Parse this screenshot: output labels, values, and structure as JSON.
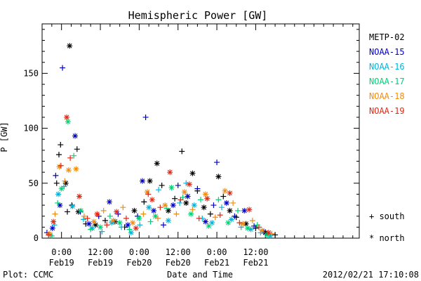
{
  "chart_data": {
    "type": "scatter",
    "title": "Hemispheric Power [GW]",
    "xlabel": "Date and Time",
    "ylabel": "P [GW]",
    "ylim": [
      0,
      195
    ],
    "yticks": [
      0,
      50,
      100,
      150
    ],
    "xlim_hours": [
      -6,
      92
    ],
    "xticks": [
      {
        "hour": 0,
        "time": "0:00",
        "date": "Feb19"
      },
      {
        "hour": 12,
        "time": "12:00",
        "date": "Feb19"
      },
      {
        "hour": 24,
        "time": "0:00",
        "date": "Feb20"
      },
      {
        "hour": 36,
        "time": "12:00",
        "date": "Feb20"
      },
      {
        "hour": 48,
        "time": "0:00",
        "date": "Feb21"
      },
      {
        "hour": 60,
        "time": "12:00",
        "date": "Feb21"
      }
    ],
    "x_minor_step_hours": 3,
    "legend_position": "right",
    "marker_legend": [
      {
        "symbol": "+",
        "label": "south"
      },
      {
        "symbol": "*",
        "label": "north"
      }
    ],
    "series": [
      {
        "name": "METP-02",
        "color": "#000000",
        "points": [
          {
            "x": -1.5,
            "y": 50,
            "m": "+"
          },
          {
            "x": -0.8,
            "y": 76,
            "m": "+"
          },
          {
            "x": -0.3,
            "y": 85,
            "m": "+"
          },
          {
            "x": 1.3,
            "y": 50,
            "m": "*"
          },
          {
            "x": 1.8,
            "y": 24,
            "m": "+"
          },
          {
            "x": 2.5,
            "y": 175,
            "m": "*"
          },
          {
            "x": 3.2,
            "y": 30,
            "m": "+"
          },
          {
            "x": 4.8,
            "y": 81,
            "m": "+"
          },
          {
            "x": 5.2,
            "y": 24,
            "m": "*"
          },
          {
            "x": 7.5,
            "y": 13,
            "m": "+"
          },
          {
            "x": 10.5,
            "y": 12,
            "m": "*"
          },
          {
            "x": 13.5,
            "y": 16,
            "m": "+"
          },
          {
            "x": 16.5,
            "y": 15,
            "m": "*"
          },
          {
            "x": 19.5,
            "y": 10,
            "m": "+"
          },
          {
            "x": 22.5,
            "y": 25,
            "m": "*"
          },
          {
            "x": 25.5,
            "y": 33,
            "m": "+"
          },
          {
            "x": 27.3,
            "y": 52,
            "m": "*"
          },
          {
            "x": 29.5,
            "y": 68,
            "m": "*"
          },
          {
            "x": 31,
            "y": 48,
            "m": "+"
          },
          {
            "x": 33,
            "y": 25,
            "m": "*"
          },
          {
            "x": 35,
            "y": 36,
            "m": "+"
          },
          {
            "x": 37.2,
            "y": 79,
            "m": "+"
          },
          {
            "x": 38.5,
            "y": 32,
            "m": "*"
          },
          {
            "x": 40.5,
            "y": 59,
            "m": "*"
          },
          {
            "x": 42,
            "y": 43,
            "m": "+"
          },
          {
            "x": 44,
            "y": 28,
            "m": "*"
          },
          {
            "x": 46,
            "y": 22,
            "m": "+"
          },
          {
            "x": 48.5,
            "y": 56,
            "m": "*"
          },
          {
            "x": 50,
            "y": 38,
            "m": "+"
          },
          {
            "x": 52,
            "y": 25,
            "m": "*"
          },
          {
            "x": 54,
            "y": 19,
            "m": "+"
          },
          {
            "x": 57,
            "y": 13,
            "m": "*"
          },
          {
            "x": 60,
            "y": 9,
            "m": "+"
          },
          {
            "x": 63,
            "y": 5,
            "m": "*"
          },
          {
            "x": 66,
            "y": 3,
            "m": "+"
          }
        ]
      },
      {
        "name": "NOAA-15",
        "color": "#0000c8",
        "points": [
          {
            "x": -4.5,
            "y": 5,
            "m": "+"
          },
          {
            "x": -2.8,
            "y": 9,
            "m": "*"
          },
          {
            "x": -1.8,
            "y": 57,
            "m": "+"
          },
          {
            "x": -0.5,
            "y": 30,
            "m": "*"
          },
          {
            "x": 0.3,
            "y": 155,
            "m": "+"
          },
          {
            "x": 4.2,
            "y": 93,
            "m": "*"
          },
          {
            "x": 5.8,
            "y": 24,
            "m": "+"
          },
          {
            "x": 8.5,
            "y": 13,
            "m": "*"
          },
          {
            "x": 11.5,
            "y": 20,
            "m": "+"
          },
          {
            "x": 14.8,
            "y": 33,
            "m": "*"
          },
          {
            "x": 17.5,
            "y": 22,
            "m": "+"
          },
          {
            "x": 20.5,
            "y": 12,
            "m": "*"
          },
          {
            "x": 23.5,
            "y": 20,
            "m": "+"
          },
          {
            "x": 25,
            "y": 52,
            "m": "*"
          },
          {
            "x": 26,
            "y": 110,
            "m": "+"
          },
          {
            "x": 28.5,
            "y": 25,
            "m": "*"
          },
          {
            "x": 31.5,
            "y": 12,
            "m": "+"
          },
          {
            "x": 34.5,
            "y": 30,
            "m": "*"
          },
          {
            "x": 36,
            "y": 48,
            "m": "+"
          },
          {
            "x": 39,
            "y": 38,
            "m": "*"
          },
          {
            "x": 42,
            "y": 45,
            "m": "+"
          },
          {
            "x": 44.5,
            "y": 15,
            "m": "*"
          },
          {
            "x": 47,
            "y": 30,
            "m": "+"
          },
          {
            "x": 48,
            "y": 69,
            "m": "+"
          },
          {
            "x": 51,
            "y": 32,
            "m": "*"
          },
          {
            "x": 53.5,
            "y": 20,
            "m": "+"
          },
          {
            "x": 56.5,
            "y": 25,
            "m": "*"
          },
          {
            "x": 59.5,
            "y": 11,
            "m": "+"
          },
          {
            "x": 62.5,
            "y": 6,
            "m": "*"
          }
        ]
      },
      {
        "name": "NOAA-16",
        "color": "#00b4dc",
        "points": [
          {
            "x": -3.5,
            "y": 3,
            "m": "*"
          },
          {
            "x": -2.2,
            "y": 12,
            "m": "+"
          },
          {
            "x": -1,
            "y": 40,
            "m": "*"
          },
          {
            "x": 0.8,
            "y": 47,
            "m": "+"
          },
          {
            "x": 3.4,
            "y": 29,
            "m": "*"
          },
          {
            "x": 6.8,
            "y": 17,
            "m": "+"
          },
          {
            "x": 9.5,
            "y": 9,
            "m": "*"
          },
          {
            "x": 12.5,
            "y": 6,
            "m": "+"
          },
          {
            "x": 15.5,
            "y": 14,
            "m": "*"
          },
          {
            "x": 18.5,
            "y": 10,
            "m": "+"
          },
          {
            "x": 21.5,
            "y": 5,
            "m": "*"
          },
          {
            "x": 24.2,
            "y": 12,
            "m": "+"
          },
          {
            "x": 27,
            "y": 28,
            "m": "*"
          },
          {
            "x": 30,
            "y": 44,
            "m": "+"
          },
          {
            "x": 33,
            "y": 16,
            "m": "*"
          },
          {
            "x": 36.5,
            "y": 32,
            "m": "+"
          },
          {
            "x": 38.5,
            "y": 50,
            "m": "+"
          },
          {
            "x": 41,
            "y": 30,
            "m": "*"
          },
          {
            "x": 43.5,
            "y": 18,
            "m": "+"
          },
          {
            "x": 46.5,
            "y": 14,
            "m": "*"
          },
          {
            "x": 49.5,
            "y": 28,
            "m": "+"
          },
          {
            "x": 52.5,
            "y": 17,
            "m": "*"
          },
          {
            "x": 55.5,
            "y": 10,
            "m": "+"
          },
          {
            "x": 58.5,
            "y": 8,
            "m": "*"
          },
          {
            "x": 61.5,
            "y": 5,
            "m": "+"
          },
          {
            "x": 64.5,
            "y": 2,
            "m": "*"
          }
        ]
      },
      {
        "name": "NOAA-17",
        "color": "#00d278",
        "points": [
          {
            "x": -3,
            "y": 2,
            "m": "+"
          },
          {
            "x": -1.2,
            "y": 32,
            "m": "+"
          },
          {
            "x": 0,
            "y": 45,
            "m": "*"
          },
          {
            "x": 2,
            "y": 106,
            "m": "*"
          },
          {
            "x": 3.8,
            "y": 75,
            "m": "+"
          },
          {
            "x": 6,
            "y": 25,
            "m": "*"
          },
          {
            "x": 9,
            "y": 8,
            "m": "+"
          },
          {
            "x": 12,
            "y": 10,
            "m": "*"
          },
          {
            "x": 15,
            "y": 20,
            "m": "+"
          },
          {
            "x": 18,
            "y": 14,
            "m": "*"
          },
          {
            "x": 21,
            "y": 8,
            "m": "+"
          },
          {
            "x": 24,
            "y": 18,
            "m": "*"
          },
          {
            "x": 27.5,
            "y": 15,
            "m": "+"
          },
          {
            "x": 29,
            "y": 20,
            "m": "*"
          },
          {
            "x": 32.5,
            "y": 27,
            "m": "+"
          },
          {
            "x": 34,
            "y": 46,
            "m": "*"
          },
          {
            "x": 37.5,
            "y": 37,
            "m": "+"
          },
          {
            "x": 40,
            "y": 22,
            "m": "*"
          },
          {
            "x": 43,
            "y": 35,
            "m": "+"
          },
          {
            "x": 45.5,
            "y": 11,
            "m": "*"
          },
          {
            "x": 48.5,
            "y": 35,
            "m": "+"
          },
          {
            "x": 51.5,
            "y": 14,
            "m": "*"
          },
          {
            "x": 54.5,
            "y": 25,
            "m": "+"
          },
          {
            "x": 57.5,
            "y": 9,
            "m": "*"
          },
          {
            "x": 60.5,
            "y": 12,
            "m": "+"
          },
          {
            "x": 63.5,
            "y": 3,
            "m": "*"
          }
        ]
      },
      {
        "name": "NOAA-18",
        "color": "#f08c14",
        "points": [
          {
            "x": -3.8,
            "y": 4,
            "m": "*"
          },
          {
            "x": -2,
            "y": 22,
            "m": "+"
          },
          {
            "x": -0.7,
            "y": 65,
            "m": "*"
          },
          {
            "x": 1,
            "y": 52,
            "m": "+"
          },
          {
            "x": 2.2,
            "y": 62,
            "m": "*"
          },
          {
            "x": 4.5,
            "y": 63,
            "m": "*"
          },
          {
            "x": 7,
            "y": 20,
            "m": "+"
          },
          {
            "x": 10,
            "y": 15,
            "m": "*"
          },
          {
            "x": 13,
            "y": 25,
            "m": "+"
          },
          {
            "x": 16,
            "y": 16,
            "m": "*"
          },
          {
            "x": 19,
            "y": 28,
            "m": "+"
          },
          {
            "x": 22,
            "y": 14,
            "m": "*"
          },
          {
            "x": 25.3,
            "y": 22,
            "m": "+"
          },
          {
            "x": 26.5,
            "y": 42,
            "m": "*"
          },
          {
            "x": 29.8,
            "y": 18,
            "m": "+"
          },
          {
            "x": 32,
            "y": 30,
            "m": "*"
          },
          {
            "x": 35.5,
            "y": 22,
            "m": "+"
          },
          {
            "x": 38,
            "y": 42,
            "m": "*"
          },
          {
            "x": 40.5,
            "y": 26,
            "m": "+"
          },
          {
            "x": 44.5,
            "y": 40,
            "m": "*"
          },
          {
            "x": 47.5,
            "y": 19,
            "m": "+"
          },
          {
            "x": 50.5,
            "y": 43,
            "m": "*"
          },
          {
            "x": 53,
            "y": 32,
            "m": "+"
          },
          {
            "x": 56,
            "y": 13,
            "m": "*"
          },
          {
            "x": 59,
            "y": 16,
            "m": "+"
          },
          {
            "x": 62,
            "y": 7,
            "m": "*"
          },
          {
            "x": 65,
            "y": 4,
            "m": "+"
          }
        ]
      },
      {
        "name": "NOAA-19",
        "color": "#e12814",
        "points": [
          {
            "x": -4,
            "y": 3,
            "m": "+"
          },
          {
            "x": -2.5,
            "y": 15,
            "m": "*"
          },
          {
            "x": -0.2,
            "y": 66,
            "m": "+"
          },
          {
            "x": 1.6,
            "y": 110,
            "m": "*"
          },
          {
            "x": 2.7,
            "y": 73,
            "m": "+"
          },
          {
            "x": 5.5,
            "y": 38,
            "m": "*"
          },
          {
            "x": 8,
            "y": 18,
            "m": "+"
          },
          {
            "x": 11,
            "y": 22,
            "m": "*"
          },
          {
            "x": 14,
            "y": 12,
            "m": "+"
          },
          {
            "x": 17,
            "y": 24,
            "m": "*"
          },
          {
            "x": 20,
            "y": 18,
            "m": "+"
          },
          {
            "x": 23,
            "y": 9,
            "m": "*"
          },
          {
            "x": 26.8,
            "y": 40,
            "m": "+"
          },
          {
            "x": 28,
            "y": 35,
            "m": "*"
          },
          {
            "x": 30.5,
            "y": 28,
            "m": "+"
          },
          {
            "x": 33.5,
            "y": 60,
            "m": "*"
          },
          {
            "x": 36.8,
            "y": 35,
            "m": "+"
          },
          {
            "x": 39.5,
            "y": 49,
            "m": "*"
          },
          {
            "x": 42.5,
            "y": 18,
            "m": "+"
          },
          {
            "x": 45,
            "y": 36,
            "m": "*"
          },
          {
            "x": 49,
            "y": 21,
            "m": "+"
          },
          {
            "x": 52,
            "y": 41,
            "m": "*"
          },
          {
            "x": 55,
            "y": 14,
            "m": "+"
          },
          {
            "x": 58,
            "y": 26,
            "m": "*"
          },
          {
            "x": 61,
            "y": 10,
            "m": "+"
          },
          {
            "x": 64,
            "y": 5,
            "m": "*"
          }
        ]
      }
    ]
  },
  "footer": {
    "plot_label": "Plot: CCMC",
    "timestamp": "2012/02/21 17:10:08"
  }
}
